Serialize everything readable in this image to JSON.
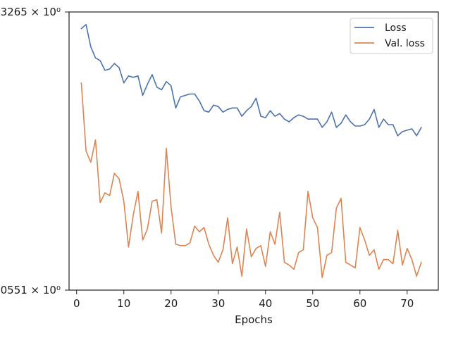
{
  "chart_data": {
    "type": "line",
    "title": "",
    "xlabel": "Epochs",
    "ylabel": "",
    "xlim": [
      -1.6,
      76.6
    ],
    "ylim": [
      0,
      100
    ],
    "x_ticks": [
      0,
      10,
      20,
      30,
      40,
      50,
      60,
      70
    ],
    "y_tick_labels": [
      {
        "value": 100,
        "label": "3265 × 10⁰"
      },
      {
        "value": 0,
        "label": "0551 × 10⁰"
      }
    ],
    "log_scale_y": true,
    "grid": false,
    "legend_position": "top-right",
    "colors": {
      "Loss": "#4c72b0",
      "Val. loss": "#dd8452"
    },
    "series": [
      {
        "name": "Loss",
        "x": [
          1,
          2,
          3,
          4,
          5,
          6,
          7,
          8,
          9,
          10,
          11,
          12,
          13,
          14,
          15,
          16,
          17,
          18,
          19,
          20,
          21,
          22,
          23,
          24,
          25,
          26,
          27,
          28,
          29,
          30,
          31,
          32,
          33,
          34,
          35,
          36,
          37,
          38,
          39,
          40,
          41,
          42,
          43,
          44,
          45,
          46,
          47,
          48,
          49,
          50,
          51,
          52,
          53,
          54,
          55,
          56,
          57,
          58,
          59,
          60,
          61,
          62,
          63,
          64,
          65,
          66,
          67,
          68,
          69,
          70,
          71,
          72,
          73
        ],
        "values": [
          94,
          95.5,
          87.5,
          83.5,
          82.5,
          79,
          79.5,
          81.5,
          80,
          74.5,
          77,
          76.5,
          77,
          70,
          74,
          77.5,
          73,
          72,
          75,
          73.5,
          65.5,
          69.5,
          70,
          70.5,
          70.5,
          68,
          64.5,
          64,
          66.5,
          66,
          64,
          65,
          65.5,
          65.5,
          62.5,
          64.5,
          66,
          69,
          62.5,
          62,
          64.5,
          62.5,
          63.5,
          61.5,
          60.5,
          62,
          63,
          62.5,
          61.5,
          61.5,
          61.5,
          58.5,
          60.5,
          64,
          58.5,
          60,
          63,
          60.5,
          59,
          59,
          59.5,
          61.5,
          65,
          58.5,
          61.5,
          59.5,
          59.5,
          55.5,
          57,
          57.5,
          58,
          55.5,
          58.5
        ]
      },
      {
        "name": "Val. loss",
        "x": [
          1,
          2,
          3,
          4,
          5,
          6,
          7,
          8,
          9,
          10,
          11,
          12,
          13,
          14,
          15,
          16,
          17,
          18,
          19,
          20,
          21,
          22,
          23,
          24,
          25,
          26,
          27,
          28,
          29,
          30,
          31,
          32,
          33,
          34,
          35,
          36,
          37,
          38,
          39,
          40,
          41,
          42,
          43,
          44,
          45,
          46,
          47,
          48,
          49,
          50,
          51,
          52,
          53,
          54,
          55,
          56,
          57,
          58,
          59,
          60,
          61,
          62,
          63,
          64,
          65,
          66,
          67,
          68,
          69,
          70,
          71,
          72,
          73
        ],
        "values": [
          74.5,
          50,
          46,
          54,
          31.5,
          35,
          34,
          42,
          40,
          32,
          15.5,
          27,
          35.5,
          18,
          22,
          32,
          32.5,
          20.5,
          51,
          30,
          16.5,
          16,
          16,
          17,
          23,
          21,
          22.5,
          16.5,
          12.5,
          10,
          14.5,
          26,
          9.5,
          15.5,
          5,
          22,
          12,
          15,
          16,
          8.5,
          21,
          16.5,
          28,
          10,
          9,
          7.5,
          13.5,
          14.5,
          35.5,
          26,
          22.5,
          4.5,
          12.5,
          13.5,
          29.5,
          33,
          10,
          9,
          8,
          22.5,
          18,
          12.5,
          14.5,
          7.5,
          11,
          11,
          9.5,
          21.5,
          9,
          15,
          11,
          5,
          10
        ]
      }
    ]
  }
}
